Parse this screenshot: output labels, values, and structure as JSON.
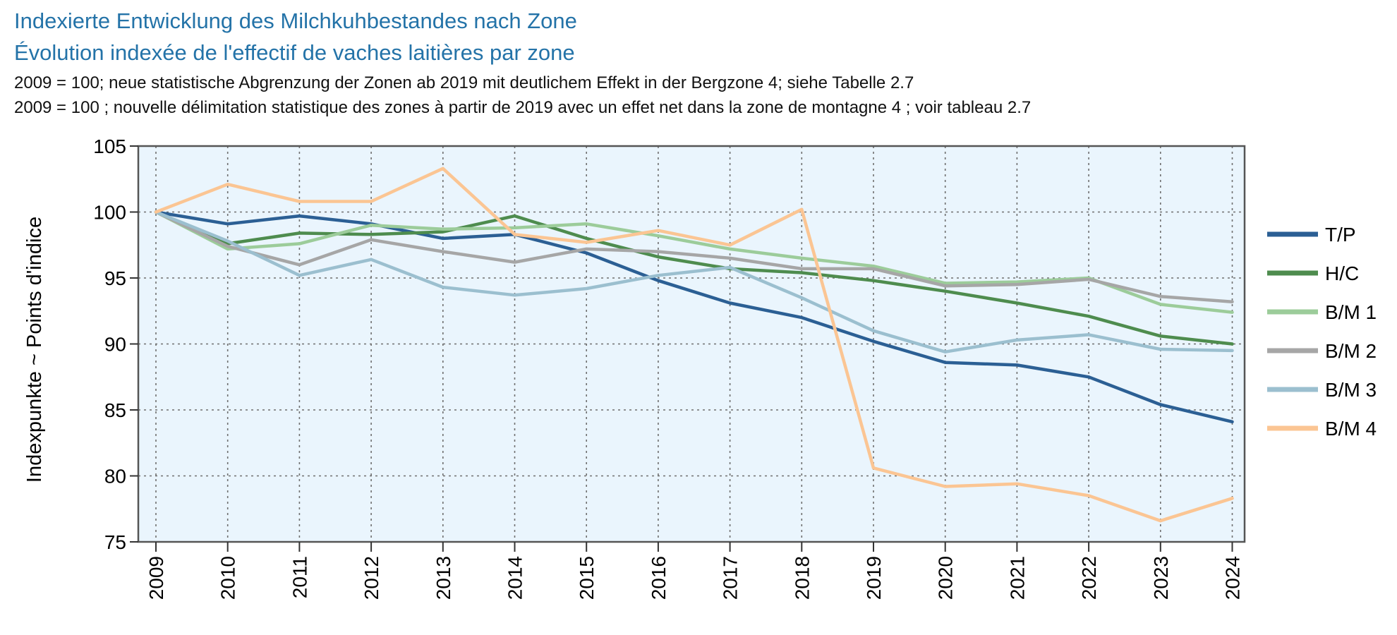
{
  "titles": {
    "de": "Indexierte Entwicklung des Milchkuhbestandes nach Zone",
    "fr": "Évolution indexée de l'effectif de vaches laitières par zone"
  },
  "subtitles": {
    "de": "2009 = 100; neue statistische Abgrenzung der Zonen ab 2019 mit deutlichem Effekt in der Bergzone 4; siehe Tabelle 2.7",
    "fr": "2009 = 100 ; nouvelle délimitation statistique des zones à partir de 2019 avec un effet net dans la zone de montagne 4 ; voir tableau 2.7"
  },
  "chart_data": {
    "type": "line",
    "ylabel": "Indexpunkte   ~   Points d'indice",
    "xlabel": "",
    "x": [
      "2009",
      "2010",
      "2011",
      "2012",
      "2013",
      "2014",
      "2015",
      "2016",
      "2017",
      "2018",
      "2019",
      "2020",
      "2021",
      "2022",
      "2023",
      "2024"
    ],
    "ylim": [
      75,
      105
    ],
    "yticks": [
      75,
      80,
      85,
      90,
      95,
      100,
      105
    ],
    "grid": true,
    "plot_background": "#eaf5fd",
    "legend_position": "right",
    "series": [
      {
        "name": "T/P",
        "color": "#2b5f94",
        "values": [
          100,
          99.1,
          99.7,
          99.1,
          98.0,
          98.3,
          96.9,
          94.8,
          93.1,
          92.0,
          90.2,
          88.6,
          88.4,
          87.5,
          85.4,
          84.1
        ]
      },
      {
        "name": "H/C",
        "color": "#4e8c4e",
        "values": [
          100,
          97.6,
          98.4,
          98.3,
          98.5,
          99.7,
          98.0,
          96.6,
          95.7,
          95.4,
          94.8,
          94.0,
          93.1,
          92.1,
          90.6,
          90.0
        ]
      },
      {
        "name": "B/M 1",
        "color": "#9ccc9a",
        "values": [
          100,
          97.2,
          97.6,
          99.0,
          98.7,
          98.8,
          99.1,
          98.2,
          97.2,
          96.5,
          95.9,
          94.6,
          94.7,
          95.0,
          93.0,
          92.4
        ]
      },
      {
        "name": "B/M 2",
        "color": "#a6a6a6",
        "values": [
          100,
          97.4,
          96.0,
          97.9,
          97.0,
          96.2,
          97.2,
          97.0,
          96.5,
          95.7,
          95.7,
          94.4,
          94.5,
          94.9,
          93.6,
          93.2
        ]
      },
      {
        "name": "B/M 3",
        "color": "#9bbfcf",
        "values": [
          100,
          97.8,
          95.2,
          96.4,
          94.3,
          93.7,
          94.2,
          95.2,
          95.8,
          93.5,
          91.0,
          89.4,
          90.3,
          90.7,
          89.6,
          89.5
        ]
      },
      {
        "name": "B/M 4",
        "color": "#fbc593",
        "values": [
          100,
          102.1,
          100.8,
          100.8,
          103.3,
          98.3,
          97.7,
          98.6,
          97.5,
          100.2,
          80.6,
          79.2,
          79.4,
          78.5,
          76.6,
          78.3
        ]
      }
    ]
  }
}
